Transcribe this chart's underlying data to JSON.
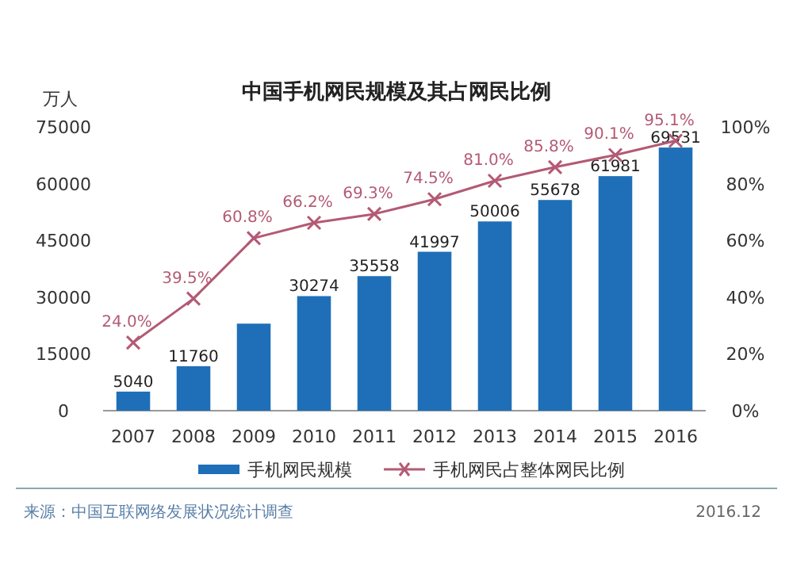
{
  "chart_data": {
    "type": "bar",
    "title": "中国手机网民规模及其占网民比例",
    "ylabel": "万人",
    "categories": [
      "2007",
      "2008",
      "2009",
      "2010",
      "2011",
      "2012",
      "2013",
      "2014",
      "2015",
      "2016"
    ],
    "series": [
      {
        "name": "手机网民规模",
        "color": "#1f6fb8",
        "values": [
          5040,
          11760,
          23000,
          30274,
          35558,
          41997,
          50006,
          55678,
          61981,
          69531
        ],
        "value_labels": [
          "5040",
          "11760",
          null,
          "30274",
          "35558",
          "41997",
          "50006",
          "55678",
          "61981",
          "69531"
        ]
      },
      {
        "name": "手机网民占整体网民比例",
        "type": "line",
        "axis": "y2",
        "color": "#b35a74",
        "marker": "cross",
        "values": [
          24.0,
          39.5,
          60.8,
          66.2,
          69.3,
          74.5,
          81.0,
          85.8,
          90.1,
          95.1
        ],
        "value_labels": [
          "24.0%",
          "39.5%",
          "60.8%",
          "66.2%",
          "69.3%",
          "74.5%",
          "81.0%",
          "85.8%",
          "90.1%",
          "95.1%"
        ]
      }
    ],
    "ylim": [
      0,
      75000
    ],
    "yticks": [
      0,
      15000,
      30000,
      45000,
      60000,
      75000
    ],
    "y2lim": [
      0,
      100
    ],
    "y2ticks": [
      {
        "value": 0,
        "label": "0%"
      },
      {
        "value": 20,
        "label": "20%"
      },
      {
        "value": 40,
        "label": "40%"
      },
      {
        "value": 60,
        "label": "60%"
      },
      {
        "value": 80,
        "label": "80%"
      },
      {
        "value": 100,
        "label": "100%"
      }
    ],
    "legend": "bottom",
    "grid": false,
    "annotations": [
      "来源：中国互联网络发展状况统计调查",
      "2016.12"
    ]
  }
}
